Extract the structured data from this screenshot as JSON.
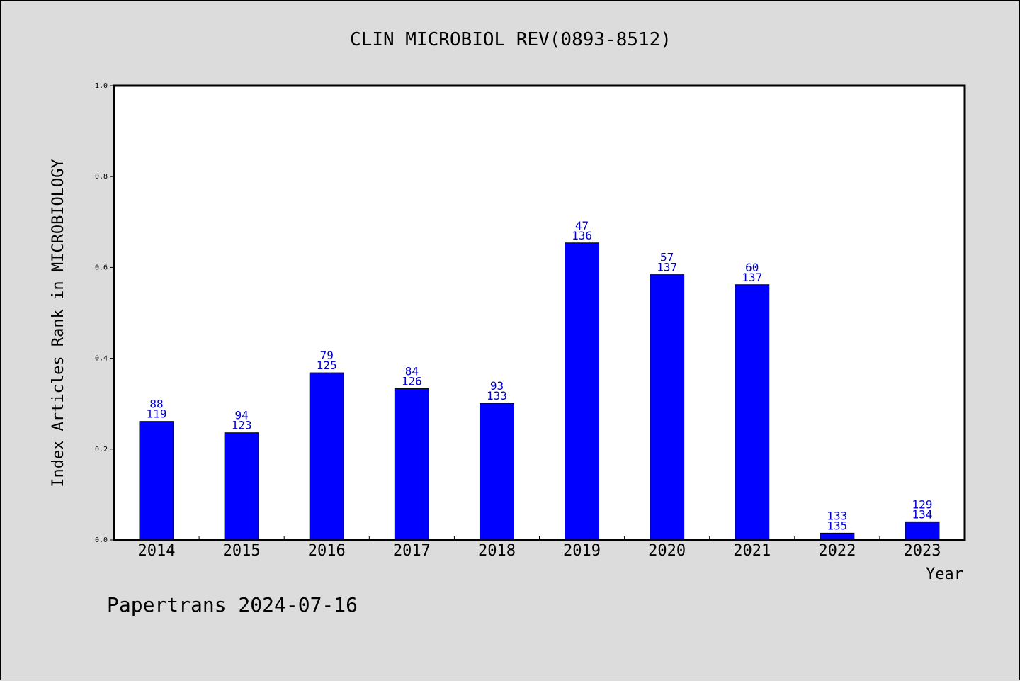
{
  "chart_data": {
    "type": "bar",
    "title": "CLIN MICROBIOL REV(0893-8512)",
    "xlabel": "Year",
    "ylabel": "Index Articles Rank in MICROBIOLOGY",
    "ylim": [
      0,
      1.0
    ],
    "yticks": [
      "0.0",
      "0.2",
      "0.4",
      "0.6",
      "0.8",
      "1.0"
    ],
    "categories": [
      "2014",
      "2015",
      "2016",
      "2017",
      "2018",
      "2019",
      "2020",
      "2021",
      "2022",
      "2023"
    ],
    "values": [
      0.261,
      0.236,
      0.368,
      0.333,
      0.301,
      0.654,
      0.584,
      0.562,
      0.015,
      0.04
    ],
    "rank_labels": [
      "88",
      "94",
      "79",
      "84",
      "93",
      "47",
      "57",
      "60",
      "133",
      "129"
    ],
    "total_labels": [
      "119",
      "123",
      "125",
      "126",
      "133",
      "136",
      "137",
      "137",
      "135",
      "134"
    ],
    "bar_color": "#0000ff",
    "label_color": "#0000cc",
    "grid": false,
    "legend": "none"
  },
  "footer": "Papertrans 2024-07-16"
}
